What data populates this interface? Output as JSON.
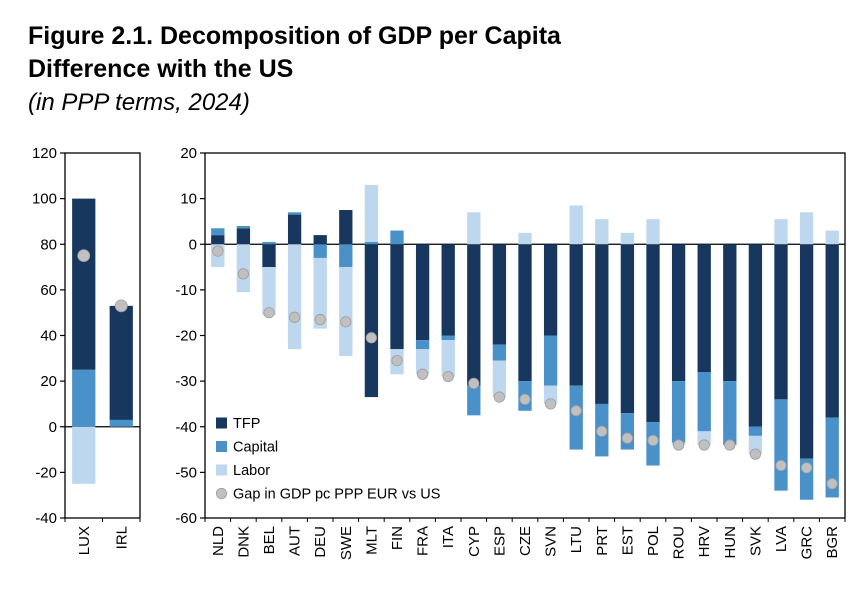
{
  "title": {
    "line1": "Figure 2.1. Decomposition of GDP per Capita",
    "line2": "Difference with the US",
    "subtitle": "(in PPP terms, 2024)"
  },
  "colors": {
    "TFP": "#17375E",
    "Capital": "#4A90C9",
    "Labor": "#BDD7EE",
    "gap": "#C0C0C0",
    "gap_stroke": "#9E9E9E",
    "axis": "#000000"
  },
  "legend": [
    {
      "key": "TFP",
      "label": "TFP",
      "marker": "square"
    },
    {
      "key": "Capital",
      "label": "Capital",
      "marker": "square"
    },
    {
      "key": "Labor",
      "label": "Labor",
      "marker": "square"
    },
    {
      "key": "gap",
      "label": "Gap in GDP pc PPP EUR vs US",
      "marker": "circle"
    }
  ],
  "chart_data": [
    {
      "type": "bar",
      "name": "left-panel-lux-irl",
      "stacked": true,
      "categories": [
        "LUX",
        "IRL"
      ],
      "ylim": [
        -40,
        120
      ],
      "ytick_step": 20,
      "grid": false,
      "bar_frac": 0.62,
      "dot_r": 6,
      "series": [
        {
          "key": "Capital",
          "name": "Capital",
          "values": [
            25,
            3
          ]
        },
        {
          "key": "TFP",
          "name": "TFP",
          "values": [
            75,
            50
          ]
        },
        {
          "key": "Labor",
          "name": "Labor",
          "values": [
            -25,
            0
          ]
        }
      ],
      "dots": {
        "name": "Gap in GDP pc PPP EUR vs US",
        "values": [
          75,
          53
        ]
      }
    },
    {
      "type": "bar",
      "name": "right-panel-eu-countries",
      "stacked": true,
      "categories": [
        "NLD",
        "DNK",
        "BEL",
        "AUT",
        "DEU",
        "SWE",
        "MLT",
        "FIN",
        "FRA",
        "ITA",
        "CYP",
        "ESP",
        "CZE",
        "SVN",
        "LTU",
        "PRT",
        "EST",
        "POL",
        "ROU",
        "HRV",
        "HUN",
        "SVK",
        "LVA",
        "GRC",
        "BGR"
      ],
      "ylim": [
        -60,
        20
      ],
      "ytick_step": 10,
      "grid": false,
      "bar_frac": 0.52,
      "dot_r": 5.2,
      "legend_pos": [
        58,
        283
      ],
      "series": [
        {
          "key": "TFP",
          "name": "TFP",
          "values": [
            2,
            3.5,
            -5,
            6.5,
            2,
            7.5,
            -33.5,
            -23,
            -21,
            -20,
            -31,
            -22,
            -30,
            -20,
            -31,
            -35,
            -37,
            -39,
            -30,
            -28,
            -30,
            -40,
            -34,
            -47,
            -38
          ]
        },
        {
          "key": "Capital",
          "name": "Capital",
          "values": [
            1.5,
            0.5,
            0.5,
            0.5,
            -3,
            -5,
            0.5,
            3,
            -2,
            -1,
            -6.5,
            -3.5,
            -6.5,
            -11,
            -14,
            -11.5,
            -8,
            -9.5,
            -13.5,
            -13,
            -14,
            -2,
            -20,
            -9,
            -17.5
          ]
        },
        {
          "key": "Labor",
          "name": "Labor",
          "values": [
            -5,
            -10.5,
            -10.5,
            -23,
            -15.5,
            -19.5,
            12.5,
            -5.5,
            -5.5,
            -8,
            7,
            -8,
            2.5,
            -4,
            8.5,
            5.5,
            2.5,
            5.5,
            -0.5,
            -3,
            0,
            -4,
            5.5,
            7,
            3
          ]
        }
      ],
      "dots": {
        "name": "Gap in GDP pc PPP EUR vs US",
        "values": [
          -1.5,
          -6.5,
          -15,
          -16,
          -16.5,
          -17,
          -20.5,
          -25.5,
          -28.5,
          -29,
          -30.5,
          -33.5,
          -34,
          -35,
          -36.5,
          -41,
          -42.5,
          -43,
          -44,
          -44,
          -44,
          -46,
          -48.5,
          -49,
          -52.5
        ]
      }
    }
  ]
}
